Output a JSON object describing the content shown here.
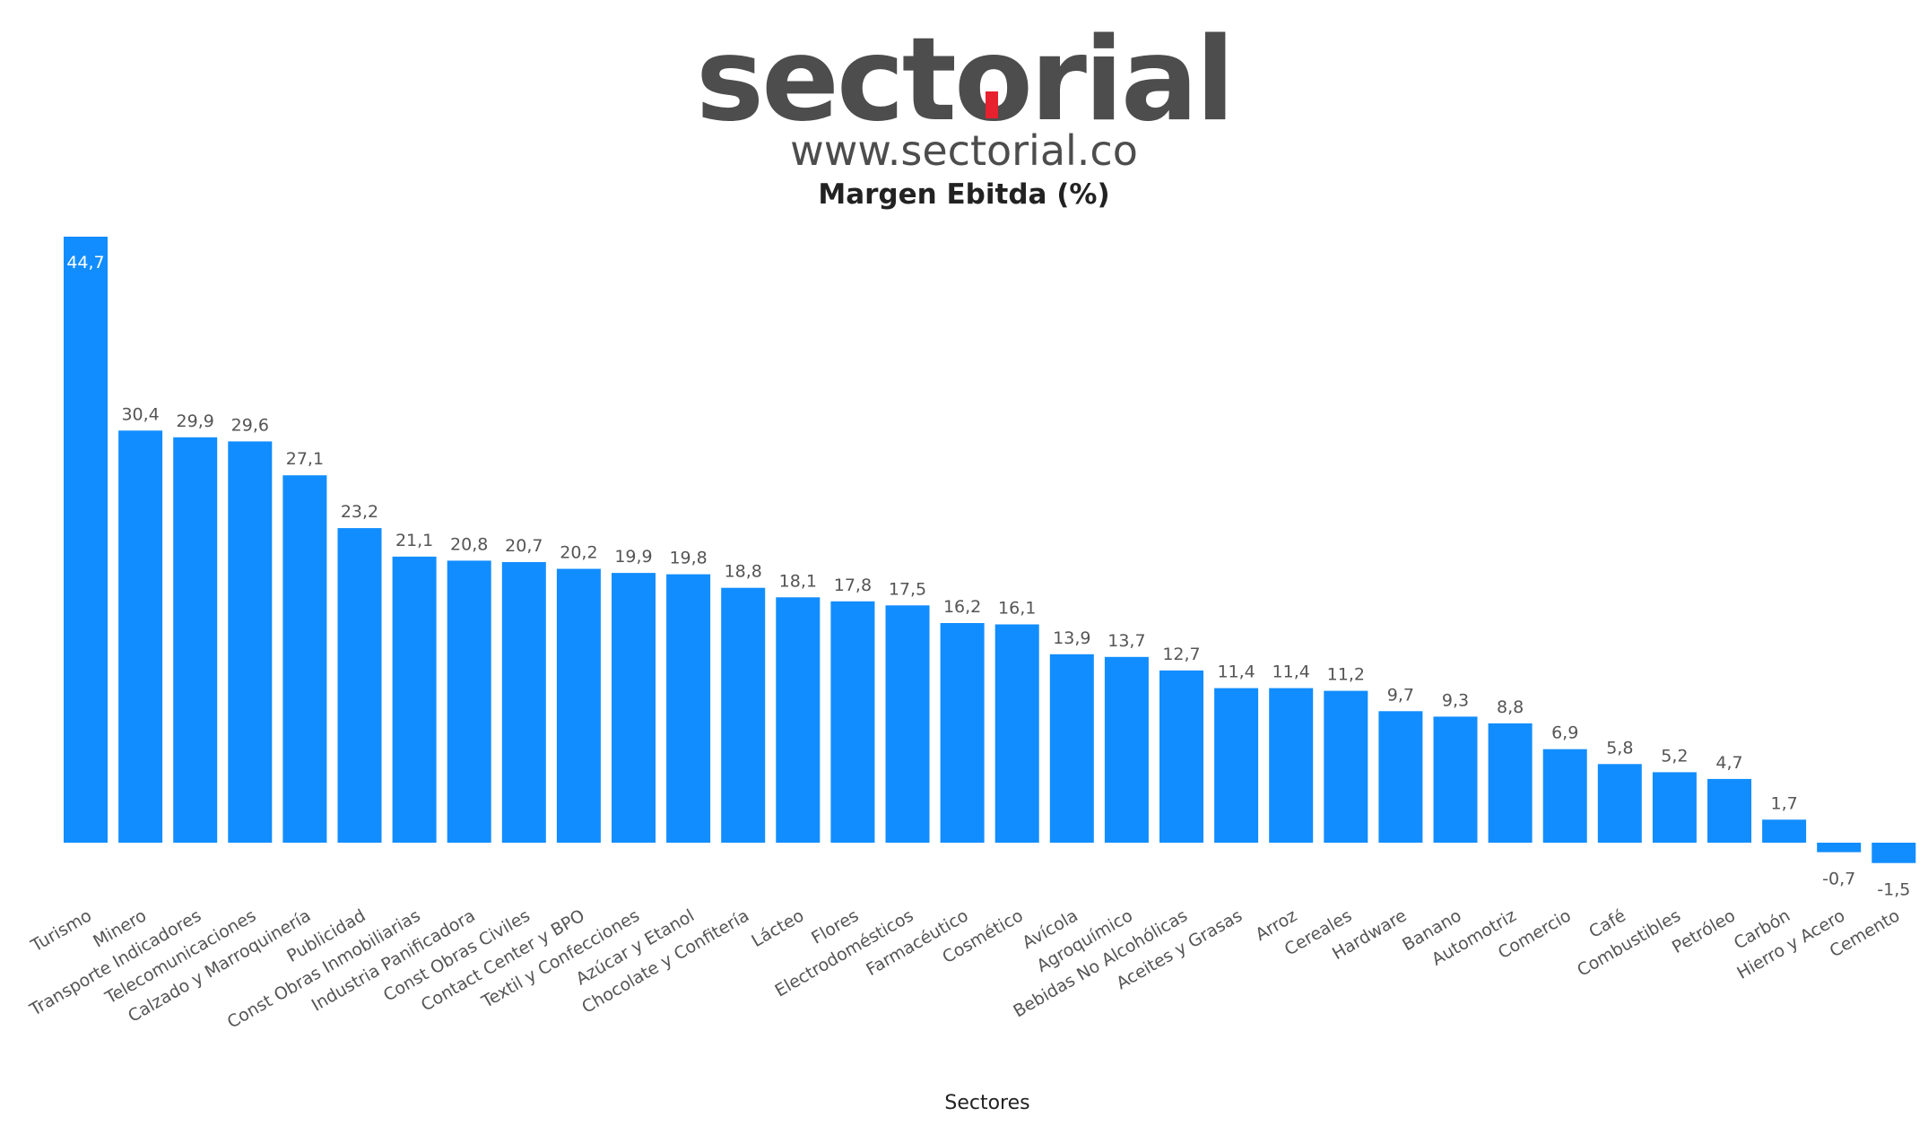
{
  "header": {
    "logo_text_before": "sect",
    "logo_text_o": "o",
    "logo_text_after": "rial",
    "website": "www.sectorial.co"
  },
  "colors": {
    "bar": "#118dff",
    "logo_text": "#4d4d4d",
    "logo_accent": "#e8212e"
  },
  "chart_data": {
    "type": "bar",
    "title": "Margen Ebitda (%)",
    "xlabel": "Sectores",
    "ylabel": "",
    "ylim": [
      -1.5,
      44.7
    ],
    "grid": false,
    "legend": "none",
    "categories": [
      "Turismo",
      "Minero",
      "Transporte Indicadores",
      "Telecomunicaciones",
      "Calzado y Marroquinería",
      "Publicidad",
      "Const Obras Inmobiliarias",
      "Industria Panificadora",
      "Const Obras Civiles",
      "Contact Center y BPO",
      "Textil y Confecciones",
      "Azúcar y Etanol",
      "Chocolate y Confitería",
      "Lácteo",
      "Flores",
      "Electrodomésticos",
      "Farmacéutico",
      "Cosmético",
      "Avícola",
      "Agroquímico",
      "Bebidas No Alcohólicas",
      "Aceites y Grasas",
      "Arroz",
      "Cereales",
      "Hardware",
      "Banano",
      "Automotriz",
      "Comercio",
      "Café",
      "Combustibles",
      "Petróleo",
      "Carbón",
      "Hierro y Acero",
      "Cemento"
    ],
    "values": [
      44.7,
      30.4,
      29.9,
      29.6,
      27.1,
      23.2,
      21.1,
      20.8,
      20.7,
      20.2,
      19.9,
      19.8,
      18.8,
      18.1,
      17.8,
      17.5,
      16.2,
      16.1,
      13.9,
      13.7,
      12.7,
      11.4,
      11.4,
      11.2,
      9.7,
      9.3,
      8.8,
      6.9,
      5.8,
      5.2,
      4.7,
      1.7,
      -0.7,
      -1.5
    ],
    "value_labels": [
      "44,7",
      "30,4",
      "29,9",
      "29,6",
      "27,1",
      "23,2",
      "21,1",
      "20,8",
      "20,7",
      "20,2",
      "19,9",
      "19,8",
      "18,8",
      "18,1",
      "17,8",
      "17,5",
      "16,2",
      "16,1",
      "13,9",
      "13,7",
      "12,7",
      "11,4",
      "11,4",
      "11,2",
      "9,7",
      "9,3",
      "8,8",
      "6,9",
      "5,8",
      "5,2",
      "4,7",
      "1,7",
      "-0,7",
      "-1,5"
    ]
  }
}
